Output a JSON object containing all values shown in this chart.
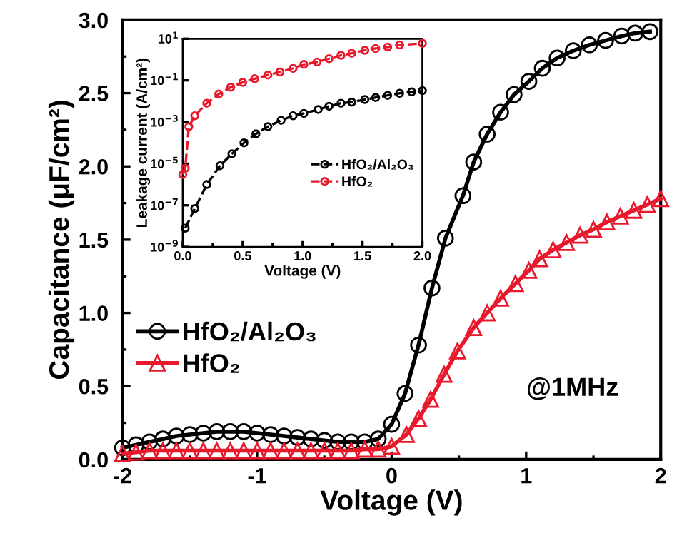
{
  "chart_data": [
    {
      "type": "line",
      "xlabel": "Voltage (V)",
      "ylabel": "Capacitance (μF/cm²)",
      "xlim": [
        -2,
        2
      ],
      "xticks": [
        -2,
        -1,
        0,
        1,
        2
      ],
      "ylim": [
        0,
        3.0
      ],
      "yticks": [
        {
          "value": 0,
          "label": "0.0"
        },
        0.5,
        {
          "value": 1,
          "label": "1.0"
        },
        1.5,
        {
          "value": 2,
          "label": "2.0"
        },
        2.5,
        {
          "value": 3,
          "label": "3.0"
        }
      ],
      "grid": false,
      "legend": "left",
      "line_style": "solid",
      "annotations": [
        "@1MHz"
      ],
      "series": [
        {
          "name": "HfO₂/Al₂O₃",
          "color": "#000000",
          "marker": "circle",
          "x": [
            -2.0,
            -1.9,
            -1.8,
            -1.7,
            -1.6,
            -1.5,
            -1.4,
            -1.3,
            -1.2,
            -1.1,
            -1.0,
            -0.9,
            -0.8,
            -0.7,
            -0.6,
            -0.5,
            -0.4,
            -0.3,
            -0.2,
            -0.1,
            0.0,
            0.1,
            0.2,
            0.3,
            0.4,
            0.53,
            0.61,
            0.71,
            0.81,
            0.91,
            1.02,
            1.12,
            1.23,
            1.35,
            1.47,
            1.59,
            1.71,
            1.81,
            1.92
          ],
          "values": [
            0.08,
            0.1,
            0.12,
            0.14,
            0.16,
            0.17,
            0.18,
            0.19,
            0.19,
            0.19,
            0.18,
            0.17,
            0.16,
            0.15,
            0.14,
            0.13,
            0.12,
            0.12,
            0.12,
            0.14,
            0.24,
            0.45,
            0.78,
            1.17,
            1.51,
            1.8,
            2.03,
            2.22,
            2.37,
            2.49,
            2.58,
            2.67,
            2.74,
            2.79,
            2.83,
            2.86,
            2.89,
            2.91,
            2.92
          ]
        },
        {
          "name": "HfO₂",
          "color": "#e8192c",
          "marker": "triangle",
          "x": [
            -2.0,
            -1.9,
            -1.8,
            -1.7,
            -1.6,
            -1.5,
            -1.4,
            -1.3,
            -1.2,
            -1.1,
            -1.0,
            -0.9,
            -0.8,
            -0.7,
            -0.6,
            -0.5,
            -0.4,
            -0.3,
            -0.2,
            -0.1,
            0.0,
            0.11,
            0.2,
            0.29,
            0.39,
            0.49,
            0.61,
            0.71,
            0.81,
            0.92,
            1.02,
            1.1,
            1.2,
            1.3,
            1.4,
            1.5,
            1.6,
            1.7,
            1.8,
            1.9,
            2.0
          ],
          "values": [
            0.04,
            0.05,
            0.06,
            0.06,
            0.06,
            0.06,
            0.06,
            0.06,
            0.06,
            0.06,
            0.06,
            0.06,
            0.06,
            0.06,
            0.06,
            0.06,
            0.06,
            0.06,
            0.07,
            0.07,
            0.09,
            0.17,
            0.28,
            0.41,
            0.58,
            0.74,
            0.9,
            1.0,
            1.1,
            1.2,
            1.29,
            1.37,
            1.43,
            1.48,
            1.53,
            1.57,
            1.62,
            1.66,
            1.7,
            1.74,
            1.78
          ]
        }
      ]
    },
    {
      "type": "line",
      "log": "y",
      "xlabel": "Voltage (V)",
      "ylabel": "Leakage current (A/cm²)",
      "xlim": [
        0,
        2.0
      ],
      "xticks": [
        {
          "value": 0,
          "label": "0.0"
        },
        0.5,
        {
          "value": 1,
          "label": "1.0"
        },
        1.5,
        {
          "value": 2,
          "label": "2.0"
        }
      ],
      "ylim": [
        1e-09,
        10
      ],
      "yticks": [
        {
          "value": 1e-09,
          "label": "10$^{−9}$"
        },
        {
          "value": 1e-07,
          "label": "10$^{−7}$"
        },
        {
          "value": 1e-05,
          "label": "10$^{−5}$"
        },
        {
          "value": 0.001,
          "label": "10$^{−3}$"
        },
        {
          "value": 0.1,
          "label": "10$^{−1}$"
        },
        {
          "value": 10,
          "label": "10$^{1}$"
        }
      ],
      "grid": false,
      "legend": "right",
      "line_style": "dashed",
      "series": [
        {
          "name": "HfO₂/Al₂O₃",
          "color": "#000000",
          "marker": "circle",
          "x": [
            0.02,
            0.1,
            0.2,
            0.31,
            0.41,
            0.51,
            0.61,
            0.71,
            0.82,
            0.92,
            1.01,
            1.13,
            1.22,
            1.32,
            1.41,
            1.52,
            1.61,
            1.71,
            1.81,
            1.91,
            2.0
          ],
          "values": [
            8e-09,
            7e-08,
            1e-06,
            8e-06,
            3e-05,
            0.0001,
            0.00027,
            0.0006,
            0.0012,
            0.002,
            0.0026,
            0.004,
            0.0057,
            0.008,
            0.009,
            0.012,
            0.015,
            0.019,
            0.024,
            0.028,
            0.032
          ]
        },
        {
          "name": "HfO₂",
          "color": "#e8192c",
          "marker": "circle",
          "x": [
            0.0,
            0.02,
            0.05,
            0.1,
            0.2,
            0.3,
            0.4,
            0.5,
            0.6,
            0.71,
            0.81,
            0.92,
            1.01,
            1.12,
            1.22,
            1.32,
            1.41,
            1.52,
            1.61,
            1.71,
            1.81,
            2.0
          ],
          "values": [
            3e-06,
            6e-06,
            0.0006,
            0.002,
            0.008,
            0.022,
            0.047,
            0.08,
            0.12,
            0.18,
            0.25,
            0.38,
            0.58,
            0.76,
            1.1,
            1.6,
            2.0,
            2.8,
            3.4,
            4.0,
            5.0,
            6.0
          ]
        }
      ]
    }
  ]
}
